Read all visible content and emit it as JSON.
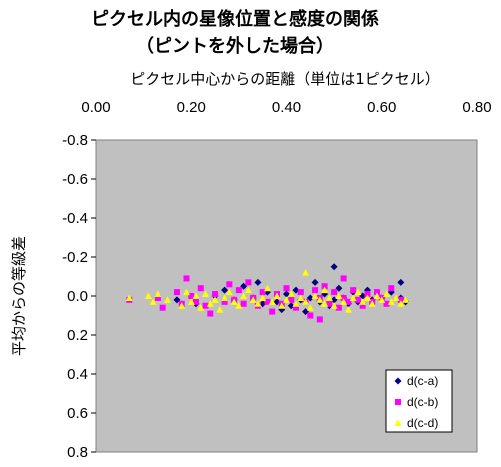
{
  "chart_data": {
    "type": "scatter",
    "title": "ピクセル内の星像位置と感度の関係",
    "subtitle": "（ピントを外した場合）",
    "xlabel": "ピクセル中心からの距離（単位は1ピクセル）",
    "ylabel": "平均からの等級差",
    "x_axis_position": "top",
    "y_axis_reversed": true,
    "xlim": [
      0,
      0.8
    ],
    "ylim": [
      -0.8,
      0.8
    ],
    "x_ticks": [
      "0.00",
      "0.20",
      "0.40",
      "0.60",
      "0.80"
    ],
    "y_ticks": [
      "-0.8",
      "-0.6",
      "-0.4",
      "-0.2",
      "0.0",
      "0.2",
      "0.4",
      "0.6",
      "0.8"
    ],
    "grid": false,
    "plot_background": "#c0c0c0",
    "legend_position": "bottom-right",
    "series": [
      {
        "name": "d(c-a)",
        "marker": "diamond",
        "color": "#000080",
        "points": [
          [
            0.17,
            0.02
          ],
          [
            0.21,
            0.04
          ],
          [
            0.25,
            0.0
          ],
          [
            0.27,
            -0.03
          ],
          [
            0.29,
            0.02
          ],
          [
            0.31,
            -0.05
          ],
          [
            0.33,
            0.01
          ],
          [
            0.34,
            -0.07
          ],
          [
            0.35,
            0.04
          ],
          [
            0.36,
            -0.02
          ],
          [
            0.38,
            0.03
          ],
          [
            0.39,
            0.07
          ],
          [
            0.4,
            -0.01
          ],
          [
            0.41,
            0.05
          ],
          [
            0.42,
            -0.03
          ],
          [
            0.43,
            0.02
          ],
          [
            0.44,
            0.08
          ],
          [
            0.45,
            0.01
          ],
          [
            0.46,
            -0.07
          ],
          [
            0.47,
            0.03
          ],
          [
            0.48,
            -0.01
          ],
          [
            0.49,
            0.05
          ],
          [
            0.5,
            -0.15
          ],
          [
            0.5,
            0.02
          ],
          [
            0.51,
            -0.04
          ],
          [
            0.52,
            0.01
          ],
          [
            0.53,
            0.04
          ],
          [
            0.54,
            -0.02
          ],
          [
            0.55,
            0.03
          ],
          [
            0.56,
            0.0
          ],
          [
            0.57,
            -0.03
          ],
          [
            0.58,
            0.02
          ],
          [
            0.6,
            0.01
          ],
          [
            0.62,
            -0.02
          ],
          [
            0.64,
            -0.07
          ],
          [
            0.64,
            0.01
          ],
          [
            0.65,
            0.03
          ]
        ]
      },
      {
        "name": "d(c-b)",
        "marker": "square",
        "color": "#ff00ff",
        "points": [
          [
            0.07,
            0.02
          ],
          [
            0.13,
            0.01
          ],
          [
            0.14,
            0.06
          ],
          [
            0.17,
            -0.02
          ],
          [
            0.18,
            0.04
          ],
          [
            0.19,
            -0.09
          ],
          [
            0.2,
            0.0
          ],
          [
            0.21,
            0.03
          ],
          [
            0.22,
            -0.04
          ],
          [
            0.23,
            0.05
          ],
          [
            0.24,
            0.09
          ],
          [
            0.25,
            -0.01
          ],
          [
            0.27,
            0.03
          ],
          [
            0.28,
            -0.06
          ],
          [
            0.29,
            0.02
          ],
          [
            0.3,
            -0.03
          ],
          [
            0.31,
            0.04
          ],
          [
            0.32,
            -0.07
          ],
          [
            0.33,
            0.01
          ],
          [
            0.34,
            0.05
          ],
          [
            0.35,
            -0.02
          ],
          [
            0.36,
            0.03
          ],
          [
            0.37,
            0.08
          ],
          [
            0.38,
            -0.01
          ],
          [
            0.39,
            0.04
          ],
          [
            0.4,
            -0.04
          ],
          [
            0.41,
            0.02
          ],
          [
            0.42,
            0.06
          ],
          [
            0.43,
            -0.02
          ],
          [
            0.44,
            0.03
          ],
          [
            0.45,
            0.1
          ],
          [
            0.46,
            -0.03
          ],
          [
            0.47,
            0.12
          ],
          [
            0.47,
            0.01
          ],
          [
            0.48,
            -0.05
          ],
          [
            0.49,
            0.04
          ],
          [
            0.5,
            -0.02
          ],
          [
            0.51,
            0.06
          ],
          [
            0.52,
            -0.09
          ],
          [
            0.52,
            0.01
          ],
          [
            0.53,
            0.03
          ],
          [
            0.54,
            -0.03
          ],
          [
            0.55,
            0.02
          ],
          [
            0.56,
            0.05
          ],
          [
            0.57,
            -0.01
          ],
          [
            0.58,
            0.03
          ],
          [
            0.59,
            -0.02
          ],
          [
            0.6,
            0.01
          ],
          [
            0.61,
            0.04
          ],
          [
            0.62,
            -0.04
          ],
          [
            0.64,
            0.02
          ]
        ]
      },
      {
        "name": "d(c-d)",
        "marker": "triangle",
        "color": "#ffff00",
        "points": [
          [
            0.07,
            0.01
          ],
          [
            0.11,
            0.0
          ],
          [
            0.12,
            0.03
          ],
          [
            0.13,
            -0.01
          ],
          [
            0.15,
            0.02
          ],
          [
            0.18,
            0.05
          ],
          [
            0.19,
            -0.02
          ],
          [
            0.2,
            0.03
          ],
          [
            0.21,
            0.0
          ],
          [
            0.22,
            0.06
          ],
          [
            0.23,
            -0.01
          ],
          [
            0.24,
            0.04
          ],
          [
            0.25,
            0.02
          ],
          [
            0.26,
            0.07
          ],
          [
            0.27,
            0.01
          ],
          [
            0.28,
            -0.02
          ],
          [
            0.29,
            0.03
          ],
          [
            0.3,
            0.05
          ],
          [
            0.31,
            0.0
          ],
          [
            0.32,
            -0.03
          ],
          [
            0.33,
            0.02
          ],
          [
            0.34,
            0.04
          ],
          [
            0.35,
            0.01
          ],
          [
            0.36,
            -0.04
          ],
          [
            0.37,
            0.03
          ],
          [
            0.38,
            0.0
          ],
          [
            0.39,
            0.05
          ],
          [
            0.4,
            0.02
          ],
          [
            0.41,
            -0.01
          ],
          [
            0.42,
            0.04
          ],
          [
            0.43,
            0.01
          ],
          [
            0.44,
            -0.12
          ],
          [
            0.44,
            0.03
          ],
          [
            0.45,
            0.06
          ],
          [
            0.46,
            0.0
          ],
          [
            0.47,
            0.02
          ],
          [
            0.48,
            -0.03
          ],
          [
            0.48,
            0.04
          ],
          [
            0.49,
            0.01
          ],
          [
            0.5,
            0.05
          ],
          [
            0.51,
            0.0
          ],
          [
            0.52,
            0.03
          ],
          [
            0.53,
            0.07
          ],
          [
            0.54,
            0.01
          ],
          [
            0.55,
            -0.02
          ],
          [
            0.56,
            0.03
          ],
          [
            0.57,
            0.01
          ],
          [
            0.58,
            0.04
          ],
          [
            0.59,
            0.0
          ],
          [
            0.6,
            0.02
          ],
          [
            0.61,
            -0.01
          ],
          [
            0.62,
            0.03
          ],
          [
            0.63,
            0.01
          ],
          [
            0.64,
            0.04
          ],
          [
            0.65,
            0.02
          ]
        ]
      }
    ]
  }
}
